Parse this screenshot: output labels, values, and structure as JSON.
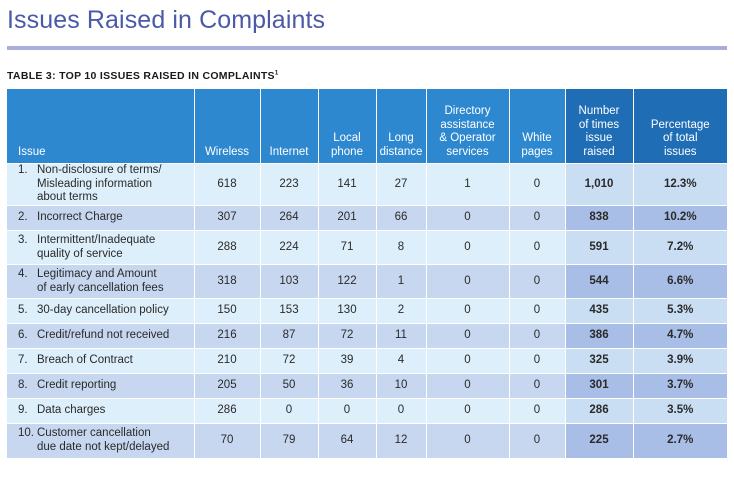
{
  "page_title": "Issues Raised in Complaints",
  "table_caption": "TABLE 3: TOP 10 ISSUES RAISED IN COMPLAINTS",
  "table_caption_footnote": "1",
  "headers": {
    "issue": "Issue",
    "wireless": "Wireless",
    "internet": "Internet",
    "local_phone": [
      "Local",
      "phone"
    ],
    "long_distance": [
      "Long",
      "distance"
    ],
    "directory": [
      "Directory",
      "assistance",
      "& Operator",
      "services"
    ],
    "white_pages": [
      "White",
      "pages"
    ],
    "times_raised": [
      "Number",
      "of times",
      "issue",
      "raised"
    ],
    "percentage": [
      "Percentage",
      "of total",
      "issues"
    ]
  },
  "rows": [
    {
      "num": "1.",
      "issue": [
        "Non-disclosure of terms/",
        "Misleading information",
        "about terms"
      ],
      "wireless": "618",
      "internet": "223",
      "local": "141",
      "long": "27",
      "directory": "1",
      "white": "0",
      "times": "1,010",
      "pct": "12.3%"
    },
    {
      "num": "2.",
      "issue": [
        "Incorrect Charge"
      ],
      "wireless": "307",
      "internet": "264",
      "local": "201",
      "long": "66",
      "directory": "0",
      "white": "0",
      "times": "838",
      "pct": "10.2%"
    },
    {
      "num": "3.",
      "issue": [
        "Intermittent/Inadequate",
        "quality of service"
      ],
      "wireless": "288",
      "internet": "224",
      "local": "71",
      "long": "8",
      "directory": "0",
      "white": "0",
      "times": "591",
      "pct": "7.2%"
    },
    {
      "num": "4.",
      "issue": [
        "Legitimacy and Amount",
        "of early cancellation fees"
      ],
      "wireless": "318",
      "internet": "103",
      "local": "122",
      "long": "1",
      "directory": "0",
      "white": "0",
      "times": "544",
      "pct": "6.6%"
    },
    {
      "num": "5.",
      "issue": [
        "30-day cancellation policy"
      ],
      "wireless": "150",
      "internet": "153",
      "local": "130",
      "long": "2",
      "directory": "0",
      "white": "0",
      "times": "435",
      "pct": "5.3%"
    },
    {
      "num": "6.",
      "issue": [
        "Credit/refund not received"
      ],
      "wireless": "216",
      "internet": "87",
      "local": "72",
      "long": "11",
      "directory": "0",
      "white": "0",
      "times": "386",
      "pct": "4.7%"
    },
    {
      "num": "7.",
      "issue": [
        "Breach of Contract"
      ],
      "wireless": "210",
      "internet": "72",
      "local": "39",
      "long": "4",
      "directory": "0",
      "white": "0",
      "times": "325",
      "pct": "3.9%"
    },
    {
      "num": "8.",
      "issue": [
        "Credit reporting"
      ],
      "wireless": "205",
      "internet": "50",
      "local": "36",
      "long": "10",
      "directory": "0",
      "white": "0",
      "times": "301",
      "pct": "3.7%"
    },
    {
      "num": "9.",
      "issue": [
        "Data charges"
      ],
      "wireless": "286",
      "internet": "0",
      "local": "0",
      "long": "0",
      "directory": "0",
      "white": "0",
      "times": "286",
      "pct": "3.5%"
    },
    {
      "num": "10.",
      "issue": [
        "Customer cancellation",
        "due date not kept/delayed"
      ],
      "wireless": "70",
      "internet": "79",
      "local": "64",
      "long": "12",
      "directory": "0",
      "white": "0",
      "times": "225",
      "pct": "2.7%"
    }
  ],
  "colors": {
    "title": "#4a5aa8",
    "rule": "#a9aedb",
    "header": "#2e88d0",
    "header_dark": "#1f6db5",
    "row_light": "#dceffa",
    "row_mid": "#c7d7ef"
  }
}
